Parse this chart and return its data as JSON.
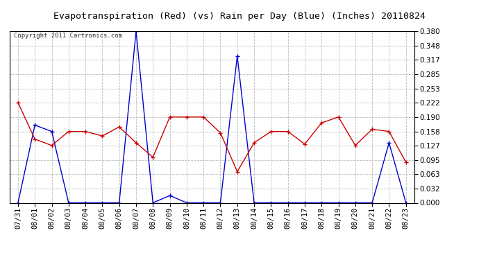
{
  "title": "Evapotranspiration (Red) (vs) Rain per Day (Blue) (Inches) 20110824",
  "copyright": "Copyright 2011 Cartronics.com",
  "x_labels": [
    "07/31",
    "08/01",
    "08/02",
    "08/03",
    "08/04",
    "08/05",
    "08/06",
    "08/07",
    "08/08",
    "08/09",
    "08/10",
    "08/11",
    "08/12",
    "08/13",
    "08/14",
    "08/15",
    "08/16",
    "08/17",
    "08/18",
    "08/19",
    "08/20",
    "08/21",
    "08/22",
    "08/23"
  ],
  "red_values": [
    0.222,
    0.141,
    0.127,
    0.158,
    0.158,
    0.148,
    0.168,
    0.133,
    0.101,
    0.19,
    0.19,
    0.19,
    0.155,
    0.069,
    0.133,
    0.158,
    0.158,
    0.13,
    0.177,
    0.19,
    0.127,
    0.163,
    0.158,
    0.09
  ],
  "blue_values": [
    0.0,
    0.172,
    0.158,
    0.0,
    0.0,
    0.0,
    0.0,
    0.38,
    0.0,
    0.016,
    0.0,
    0.0,
    0.0,
    0.325,
    0.0,
    0.0,
    0.0,
    0.0,
    0.0,
    0.0,
    0.0,
    0.0,
    0.133,
    0.0
  ],
  "ylim": [
    0.0,
    0.38
  ],
  "yticks": [
    0.0,
    0.032,
    0.063,
    0.095,
    0.127,
    0.158,
    0.19,
    0.222,
    0.253,
    0.285,
    0.317,
    0.348,
    0.38
  ],
  "background_color": "#ffffff",
  "plot_bg_color": "#ffffff",
  "grid_color": "#bbbbbb",
  "red_color": "#cc0000",
  "blue_color": "#0000cc",
  "title_fontsize": 9.5,
  "copyright_fontsize": 6.5,
  "tick_fontsize": 7.5
}
